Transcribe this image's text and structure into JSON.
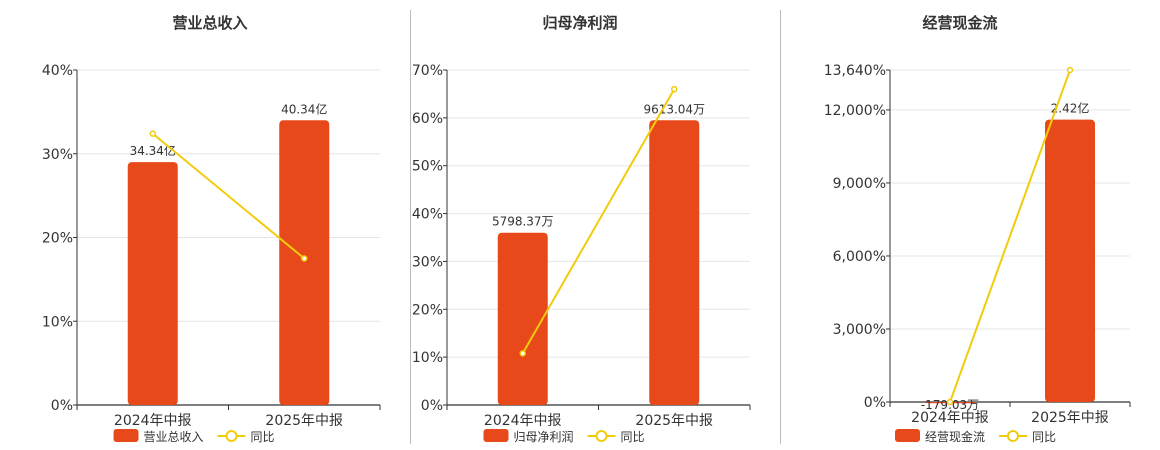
{
  "colors": {
    "bar": "#E8491A",
    "line": "#F2CC0C",
    "grid": "#e6e6e6",
    "axis": "#333333",
    "text": "#333333"
  },
  "legend_line_label": "同比",
  "chart_data": [
    {
      "type": "bar",
      "title": "营业总收入",
      "categories": [
        "2024年中报",
        "2025年中报"
      ],
      "y_axis_ticks": [
        "0%",
        "10%",
        "20%",
        "30%",
        "40%"
      ],
      "ylim": [
        0,
        40
      ],
      "series": [
        {
          "name": "营业总收入",
          "type": "bar",
          "values": [
            29,
            34
          ],
          "labels": [
            "34.34亿",
            "40.34亿"
          ]
        },
        {
          "name": "同比",
          "type": "line",
          "values": [
            32.4,
            17.5
          ]
        }
      ],
      "legend_position": "bottom"
    },
    {
      "type": "bar",
      "title": "归母净利润",
      "categories": [
        "2024年中报",
        "2025年中报"
      ],
      "y_axis_ticks": [
        "0%",
        "10%",
        "20%",
        "30%",
        "40%",
        "50%",
        "60%",
        "70%"
      ],
      "ylim": [
        0,
        70
      ],
      "series": [
        {
          "name": "归母净利润",
          "type": "bar",
          "values": [
            36,
            59.5
          ],
          "labels": [
            "5798.37万",
            "9613.04万"
          ]
        },
        {
          "name": "同比",
          "type": "line",
          "values": [
            10.8,
            66
          ]
        }
      ],
      "legend_position": "bottom"
    },
    {
      "type": "bar",
      "title": "经营现金流",
      "categories": [
        "2024年中报",
        "2025年中报"
      ],
      "y_axis_ticks": [
        "0%",
        "3,000%",
        "6,000%",
        "9,000%",
        "12,000%",
        "13,640%"
      ],
      "ylim": [
        0,
        13640
      ],
      "series": [
        {
          "name": "经营现金流",
          "type": "bar",
          "values": [
            -50,
            11600
          ],
          "labels": [
            "-179.03万",
            "2.42亿"
          ]
        },
        {
          "name": "同比",
          "type": "line",
          "values": [
            0,
            13640
          ]
        }
      ],
      "legend_position": "bottom"
    }
  ]
}
